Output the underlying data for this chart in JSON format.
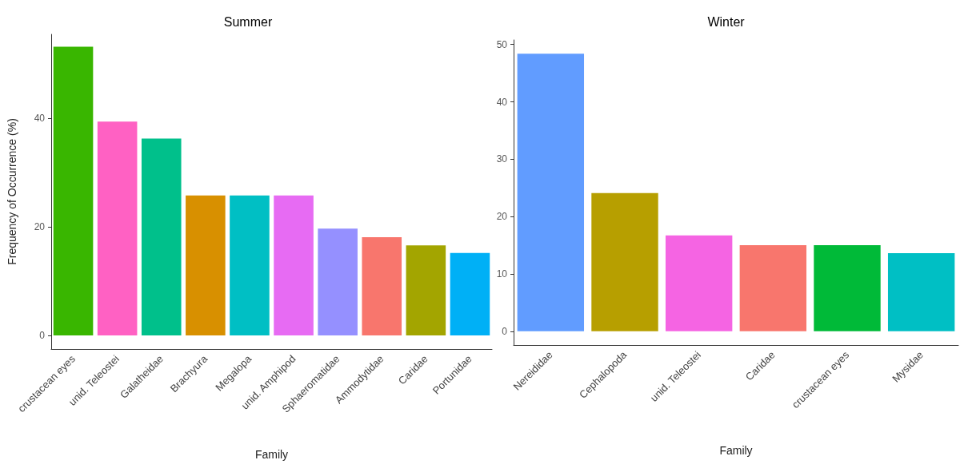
{
  "chart_data": [
    {
      "type": "bar",
      "title": "Summer",
      "xlabel": "Family",
      "ylabel": "Frequency of Occurrence (%)",
      "categories": [
        "crustacean eyes",
        "unid. Teleostei",
        "Galatheidae",
        "Brachyura",
        "Megalopa",
        "unid. Amphipod",
        "Sphaeromatidae",
        "Ammodytidae",
        "Caridae",
        "Portunidae"
      ],
      "values": [
        53.2,
        39.4,
        36.3,
        25.8,
        25.8,
        25.8,
        19.7,
        18.1,
        16.6,
        15.2
      ],
      "colors": [
        "#39b600",
        "#ff61c3",
        "#00c08b",
        "#d89000",
        "#00bfc4",
        "#e76bf3",
        "#9590ff",
        "#f8766d",
        "#a3a500",
        "#00b0f6"
      ],
      "ylim": [
        -2.5,
        55.5
      ],
      "yticks": [
        0,
        20,
        40
      ]
    },
    {
      "type": "bar",
      "title": "Winter",
      "xlabel": "Family",
      "categories": [
        "Nereididae",
        "Cephalopoda",
        "unid. Teleostei",
        "Caridae",
        "crustacean eyes",
        "Mysidae"
      ],
      "values": [
        48.4,
        24.1,
        16.7,
        15.0,
        15.0,
        13.6
      ],
      "colors": [
        "#619cff",
        "#b79f00",
        "#f564e3",
        "#f8766d",
        "#00ba38",
        "#00bfc4"
      ],
      "ylim": [
        -2.4,
        50.8
      ],
      "yticks": [
        0,
        10,
        20,
        30,
        40,
        50
      ]
    }
  ]
}
